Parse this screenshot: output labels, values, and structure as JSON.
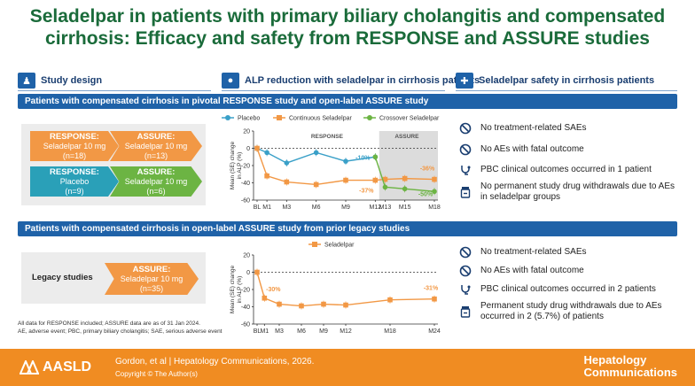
{
  "title_line1": "Seladelpar in patients with primary biliary cholangitis and compensated",
  "title_line2": "cirrhosis: Efficacy and safety from RESPONSE and ASSURE studies",
  "sections": {
    "design": "Study design",
    "alp": "ALP reduction with seladelpar in cirrhosis patients",
    "safety": "Seladelpar safety in cirrhosis patients"
  },
  "bands": {
    "top": "Patients with compensated cirrhosis in pivotal RESPONSE study and open-label ASSURE study",
    "bottom": "Patients with compensated cirrhosis in open-label ASSURE study from prior legacy studies"
  },
  "design_top": {
    "row1_a_title": "RESPONSE:",
    "row1_a_l1": "Seladelpar 10 mg",
    "row1_a_l2": "(n=18)",
    "row1_b_title": "ASSURE:",
    "row1_b_l1": "Seladelpar 10 mg",
    "row1_b_l2": "(n=13)",
    "row2_a_title": "RESPONSE:",
    "row2_a_l1": "Placebo",
    "row2_a_l2": "(n=9)",
    "row2_b_title": "ASSURE:",
    "row2_b_l1": "Seladelpar 10 mg",
    "row2_b_l2": "(n=6)"
  },
  "design_bottom": {
    "legacy": "Legacy studies",
    "title": "ASSURE:",
    "l1": "Seladelpar 10 mg",
    "l2": "(n=35)"
  },
  "footnotes": {
    "l1": "All data for RESPONSE included; ASSURE data are as of 31 Jan 2024.",
    "l2": "AE, adverse event; PBC, primary biliary cholangitis; SAE, serious adverse event"
  },
  "colors": {
    "placebo": "#3aa0c8",
    "continuous": "#f29845",
    "crossover": "#6cb443",
    "assure_shade": "#dcdcdc"
  },
  "chart_data": [
    {
      "type": "line",
      "ylabel_l1": "Mean (SE) change",
      "ylabel_l2": "in ALP (%)",
      "ylim": [
        -60,
        20
      ],
      "yticks": [
        "20",
        "0",
        "-20",
        "-40",
        "-60"
      ],
      "ytick_values": [
        20,
        0,
        -20,
        -40,
        -60
      ],
      "xtick_labels": [
        "BL",
        "M1",
        "M3",
        "M6",
        "M9",
        "M12",
        "M13",
        "M15",
        "M18"
      ],
      "xtick_months": [
        0,
        1,
        3,
        6,
        9,
        12,
        13,
        15,
        18
      ],
      "region_labels": [
        "RESPONSE",
        "ASSURE"
      ],
      "legend": [
        "Placebo",
        "Continuous Seladelpar",
        "Crossover Seladelpar"
      ],
      "annotations": [
        "-10%",
        "-37%",
        "-36%",
        "-50%"
      ],
      "series": [
        {
          "name": "Placebo",
          "x": [
            0,
            1,
            3,
            6,
            9,
            12
          ],
          "values": [
            0,
            -5,
            -17,
            -5,
            -15,
            -10
          ]
        },
        {
          "name": "Continuous Seladelpar",
          "x": [
            0,
            1,
            3,
            6,
            9,
            12,
            13,
            15,
            18
          ],
          "values": [
            0,
            -32,
            -39,
            -42,
            -37,
            -37,
            -36,
            -35,
            -36
          ]
        },
        {
          "name": "Crossover Seladelpar",
          "x": [
            12,
            13,
            15,
            18
          ],
          "values": [
            -10,
            -45,
            -47,
            -50
          ]
        }
      ]
    },
    {
      "type": "line",
      "ylabel_l1": "Mean (SE) change",
      "ylabel_l2": "in ALP (%)",
      "ylim": [
        -60,
        20
      ],
      "yticks": [
        "20",
        "0",
        "-20",
        "-40",
        "-60"
      ],
      "ytick_values": [
        20,
        0,
        -20,
        -40,
        -60
      ],
      "xtick_labels": [
        "BL",
        "M1",
        "M3",
        "M6",
        "M9",
        "M12",
        "M18",
        "M24"
      ],
      "xtick_months": [
        0,
        1,
        3,
        6,
        9,
        12,
        18,
        24
      ],
      "legend": [
        "Seladelpar"
      ],
      "annotations": [
        "-30%",
        "-31%"
      ],
      "series": [
        {
          "name": "Seladelpar",
          "x": [
            0,
            1,
            3,
            6,
            9,
            12,
            18,
            24
          ],
          "values": [
            0,
            -30,
            -37,
            -39,
            -37,
            -38,
            -32,
            -31
          ]
        }
      ]
    }
  ],
  "safety_top": [
    "No treatment-related SAEs",
    "No AEs with fatal outcome",
    "PBC clinical outcomes occurred in 1 patient",
    "No permanent study drug withdrawals due to AEs",
    "in seladelpar groups"
  ],
  "safety_bottom": [
    "No treatment-related SAEs",
    "No AEs with fatal outcome",
    "PBC clinical outcomes occurred in 2 patients",
    "Permanent study drug withdrawals due to AEs",
    "occurred in 2 (5.7%) of patients"
  ],
  "footer": {
    "logo": "AASLD",
    "cite_l1": "Gordon, et al  |  Hepatology Communications, 2026.",
    "cite_l2": "Copyright © The Author(s)",
    "journal_l1": "Hepatology",
    "journal_l2": "Communications"
  }
}
